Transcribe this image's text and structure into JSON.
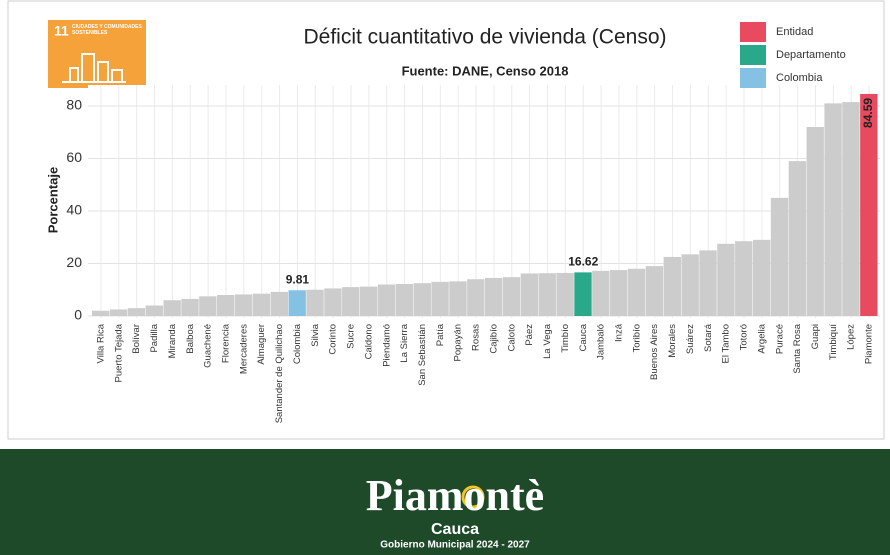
{
  "badge": {
    "number": "11",
    "text": "CIUDADES Y COMUNIDADES SOSTENIBLES"
  },
  "chart_data": {
    "type": "bar",
    "title": "Déficit cuantitativo de vivienda (Censo)",
    "subtitle": "Fuente: DANE, Censo 2018",
    "ylabel": "Porcentaje",
    "categories": [
      "Villa Rica",
      "Puerto Tejada",
      "Bolívar",
      "Padilla",
      "Miranda",
      "Balboa",
      "Guachené",
      "Florencia",
      "Mercaderes",
      "Almaguer",
      "Santander de Quilichao",
      "Colombia",
      "Silvia",
      "Corinto",
      "Sucre",
      "Caldono",
      "Piendamó",
      "La Sierra",
      "San Sebastián",
      "Patía",
      "Popayán",
      "Rosas",
      "Cajibío",
      "Caloto",
      "Páez",
      "La Vega",
      "Timbío",
      "Cauca",
      "Jambaló",
      "Inzá",
      "Toribío",
      "Buenos Aires",
      "Morales",
      "Suárez",
      "Sotará",
      "El Tambo",
      "Totoró",
      "Argelia",
      "Puracé",
      "Santa Rosa",
      "Guapi",
      "Timbiquí",
      "López",
      "Piamonte"
    ],
    "values": [
      2,
      2.5,
      3,
      4,
      6,
      6.5,
      7.5,
      8,
      8.2,
      8.5,
      9.2,
      9.81,
      10,
      10.5,
      11,
      11.2,
      12,
      12.2,
      12.5,
      13,
      13.2,
      14,
      14.5,
      14.8,
      16.2,
      16.3,
      16.4,
      16.62,
      17.2,
      17.5,
      18,
      19,
      22.5,
      23.5,
      25,
      27.5,
      28.5,
      29,
      45,
      59,
      72,
      81,
      81.5,
      84.59
    ],
    "value_labels": [
      null,
      null,
      null,
      null,
      null,
      null,
      null,
      null,
      null,
      null,
      null,
      "9.81",
      null,
      null,
      null,
      null,
      null,
      null,
      null,
      null,
      null,
      null,
      null,
      null,
      null,
      null,
      null,
      "16.62",
      null,
      null,
      null,
      null,
      null,
      null,
      null,
      null,
      null,
      null,
      null,
      null,
      null,
      null,
      null,
      "84.59"
    ],
    "color": "#cccccc",
    "series": [
      {
        "name": "Entidad",
        "color": "#e84a5f",
        "index": 43
      },
      {
        "name": "Departamento",
        "color": "#2aa88a",
        "index": 27
      },
      {
        "name": "Colombia",
        "color": "#85c1e3",
        "index": 11
      }
    ],
    "ylim": [
      0,
      88
    ],
    "yticks": [
      0,
      20,
      40,
      60,
      80
    ],
    "grid": true,
    "legend": "top-right"
  },
  "footer": {
    "logo": "Piamontè",
    "region": "Cauca",
    "tagline": "Gobierno Municipal 2024 - 2027"
  }
}
